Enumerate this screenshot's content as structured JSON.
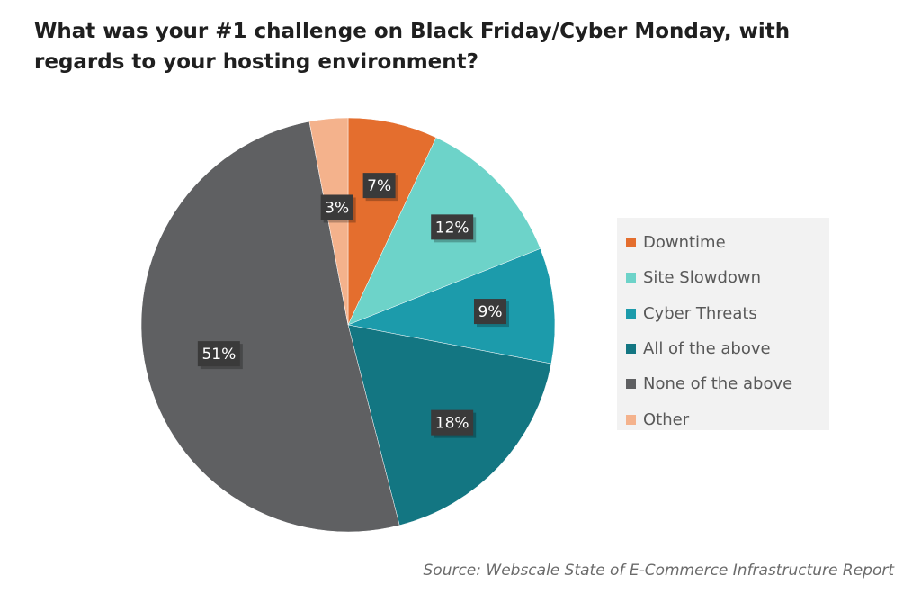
{
  "chart_data": {
    "type": "pie",
    "title_lines": [
      "What was your #1 challenge on Black Friday/Cyber Monday, with",
      "regards to your hosting environment?"
    ],
    "categories": [
      "Downtime",
      "Site Slowdown",
      "Cyber Threats",
      "All of the above",
      "None of the above",
      "Other"
    ],
    "values": [
      7,
      12,
      9,
      18,
      51,
      3
    ],
    "data_labels": [
      "7%",
      "12%",
      "9%",
      "18%",
      "51%",
      "3%"
    ],
    "colors": [
      "#e46e2e",
      "#6dd3c9",
      "#1c9bab",
      "#137682",
      "#5f6062",
      "#f4b28c"
    ],
    "legend_position": "right",
    "label_box_color": "#3a3a3a"
  },
  "source": "Source: Webscale State of E-Commerce Infrastructure Report"
}
